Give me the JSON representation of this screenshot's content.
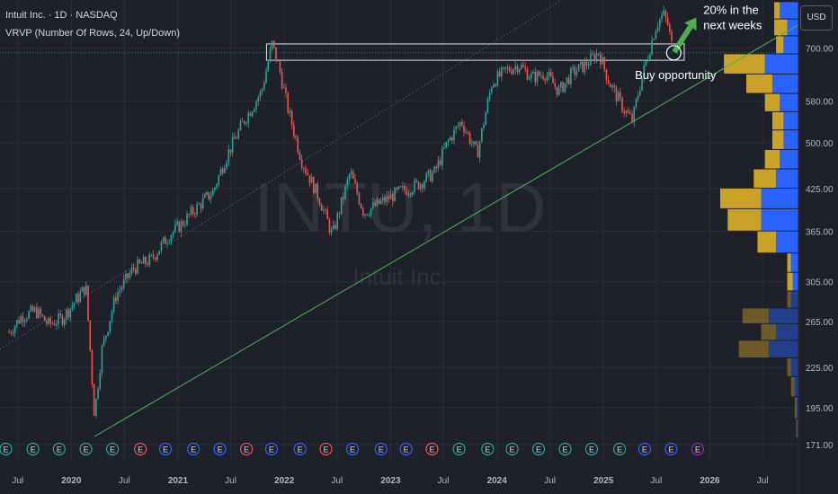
{
  "header": {
    "title": "Intuit Inc. · 1D · NASDAQ",
    "indicator": "VRVP (Number Of Rows, 24, Up/Down)",
    "currency": "USD"
  },
  "watermark": {
    "symbol": "INTU, 1D",
    "company": "Intuit Inc."
  },
  "colors": {
    "background": "#1f212a",
    "candle_up": "#26a69a",
    "candle_down": "#ef5350",
    "trendline": "#4caf50",
    "volume_up": "#2962ff",
    "volume_down": "#c9a227",
    "arrow": "#4caf50",
    "annotation": "#ffffff"
  },
  "chart_data": {
    "type": "candlestick",
    "symbol": "INTU",
    "interval": "1D",
    "y_axis": {
      "scale": "log",
      "ticks": [
        "700.00",
        "580.00",
        "500.00",
        "425.00",
        "365.00",
        "305.00",
        "265.00",
        "225.00",
        "195.00",
        "171.00"
      ],
      "range": [
        162,
        830
      ]
    },
    "x_axis": {
      "ticks": [
        "Jul",
        "2020",
        "Jul",
        "2021",
        "Jul",
        "2022",
        "Jul",
        "2023",
        "Jul",
        "2024",
        "Jul",
        "2025",
        "Jul",
        "2026",
        "Jul"
      ],
      "range": [
        "2019-05-01",
        "2026-11-01"
      ]
    },
    "price_path": [
      [
        "2019-06-01",
        255
      ],
      [
        "2019-07-15",
        270
      ],
      [
        "2019-09-01",
        275
      ],
      [
        "2019-10-15",
        262
      ],
      [
        "2019-12-01",
        268
      ],
      [
        "2020-01-15",
        285
      ],
      [
        "2020-02-20",
        300
      ],
      [
        "2020-03-20",
        190
      ],
      [
        "2020-04-15",
        240
      ],
      [
        "2020-06-01",
        290
      ],
      [
        "2020-08-01",
        320
      ],
      [
        "2020-10-01",
        330
      ],
      [
        "2020-12-01",
        360
      ],
      [
        "2021-01-15",
        375
      ],
      [
        "2021-03-01",
        395
      ],
      [
        "2021-05-01",
        420
      ],
      [
        "2021-06-15",
        475
      ],
      [
        "2021-08-15",
        540
      ],
      [
        "2021-10-15",
        600
      ],
      [
        "2021-11-20",
        710
      ],
      [
        "2021-12-15",
        650
      ],
      [
        "2022-01-15",
        560
      ],
      [
        "2022-03-01",
        470
      ],
      [
        "2022-05-01",
        410
      ],
      [
        "2022-06-15",
        360
      ],
      [
        "2022-08-15",
        450
      ],
      [
        "2022-10-01",
        390
      ],
      [
        "2022-12-01",
        405
      ],
      [
        "2023-02-01",
        420
      ],
      [
        "2023-04-01",
        430
      ],
      [
        "2023-06-01",
        450
      ],
      [
        "2023-07-15",
        500
      ],
      [
        "2023-09-01",
        540
      ],
      [
        "2023-10-25",
        480
      ],
      [
        "2023-12-15",
        620
      ],
      [
        "2024-02-01",
        645
      ],
      [
        "2024-03-15",
        660
      ],
      [
        "2024-05-01",
        630
      ],
      [
        "2024-06-15",
        640
      ],
      [
        "2024-08-01",
        600
      ],
      [
        "2024-09-15",
        640
      ],
      [
        "2024-11-01",
        660
      ],
      [
        "2024-12-15",
        690
      ],
      [
        "2025-01-20",
        620
      ],
      [
        "2025-02-15",
        590
      ],
      [
        "2025-03-15",
        560
      ],
      [
        "2025-04-10",
        540
      ],
      [
        "2025-05-01",
        600
      ],
      [
        "2025-06-01",
        680
      ],
      [
        "2025-07-01",
        760
      ],
      [
        "2025-07-25",
        790
      ],
      [
        "2025-08-10",
        760
      ],
      [
        "2025-08-25",
        700
      ]
    ],
    "resistance_zone": {
      "x_start": "2021-11-01",
      "x_end": "2025-10-05",
      "y_low": 670,
      "y_high": 710
    },
    "trendlines": [
      {
        "style": "solid",
        "from": [
          "2020-03-20",
          176
        ],
        "to": [
          "2026-11-01",
          760
        ]
      },
      {
        "style": "dotted",
        "from": [
          "2019-05-01",
          240
        ],
        "to": [
          "2026-11-01",
          1400
        ]
      }
    ],
    "volume_profile": {
      "rows": [
        {
          "price": 800,
          "up": 5,
          "down": 1.5
        },
        {
          "price": 750,
          "up": 3,
          "down": 3.5
        },
        {
          "price": 710,
          "up": 4,
          "down": 2
        },
        {
          "price": 660,
          "up": 9,
          "down": 11
        },
        {
          "price": 615,
          "up": 7,
          "down": 7
        },
        {
          "price": 575,
          "up": 5,
          "down": 4
        },
        {
          "price": 540,
          "up": 4,
          "down": 3
        },
        {
          "price": 505,
          "up": 4,
          "down": 3
        },
        {
          "price": 470,
          "up": 5,
          "down": 4
        },
        {
          "price": 440,
          "up": 6,
          "down": 6
        },
        {
          "price": 410,
          "up": 10,
          "down": 11
        },
        {
          "price": 380,
          "up": 10,
          "down": 9
        },
        {
          "price": 350,
          "up": 6,
          "down": 5
        },
        {
          "price": 325,
          "up": 2,
          "down": 1
        },
        {
          "price": 305,
          "up": 1.5,
          "down": 1.5
        },
        {
          "price": 285,
          "up": 2,
          "down": 1
        },
        {
          "price": 270,
          "up": 8,
          "down": 7
        },
        {
          "price": 255,
          "up": 6,
          "down": 4
        },
        {
          "price": 240,
          "up": 8,
          "down": 8
        },
        {
          "price": 225,
          "up": 2,
          "down": 1
        },
        {
          "price": 210,
          "up": 1,
          "down": 1
        },
        {
          "price": 195,
          "up": 0.5,
          "down": 0.5
        },
        {
          "price": 180,
          "up": 0.3,
          "down": 0.3
        }
      ]
    },
    "annotations": [
      {
        "text": "20% in the",
        "text2": "next weeks",
        "type": "arrow",
        "from": [
          "2025-09-01",
          690
        ],
        "to": [
          "2025-11-15",
          780
        ]
      },
      {
        "text": "Buy opportunity",
        "type": "circle",
        "at": [
          "2025-08-30",
          688
        ]
      }
    ],
    "earnings_markers": {
      "label": "E",
      "items": [
        {
          "x": "2019-05-21",
          "color": "#26a69a"
        },
        {
          "x": "2019-08-22",
          "color": "#26a69a"
        },
        {
          "x": "2019-11-20",
          "color": "#26a69a"
        },
        {
          "x": "2020-02-20",
          "color": "#26a69a"
        },
        {
          "x": "2020-05-21",
          "color": "#26a69a"
        },
        {
          "x": "2020-08-25",
          "color": "#ef5350"
        },
        {
          "x": "2020-11-19",
          "color": "#2962ff"
        },
        {
          "x": "2021-02-23",
          "color": "#2962ff"
        },
        {
          "x": "2021-05-25",
          "color": "#2962ff"
        },
        {
          "x": "2021-08-24",
          "color": "#ef5350"
        },
        {
          "x": "2021-11-18",
          "color": "#2962ff"
        },
        {
          "x": "2022-02-24",
          "color": "#2962ff"
        },
        {
          "x": "2022-05-24",
          "color": "#ef5350"
        },
        {
          "x": "2022-08-23",
          "color": "#2962ff"
        },
        {
          "x": "2022-11-29",
          "color": "#2962ff"
        },
        {
          "x": "2023-02-23",
          "color": "#2962ff"
        },
        {
          "x": "2023-05-23",
          "color": "#ef5350"
        },
        {
          "x": "2023-08-24",
          "color": "#26a69a"
        },
        {
          "x": "2023-11-30",
          "color": "#26a69a"
        },
        {
          "x": "2024-02-22",
          "color": "#26a69a"
        },
        {
          "x": "2024-05-23",
          "color": "#26a69a"
        },
        {
          "x": "2024-08-22",
          "color": "#26a69a"
        },
        {
          "x": "2024-11-21",
          "color": "#26a69a"
        },
        {
          "x": "2025-02-25",
          "color": "#26a69a"
        },
        {
          "x": "2025-05-22",
          "color": "#2962ff"
        },
        {
          "x": "2025-08-21",
          "color": "#2962ff"
        },
        {
          "x": "2025-11-20",
          "color": "#9c27b0"
        }
      ]
    }
  }
}
